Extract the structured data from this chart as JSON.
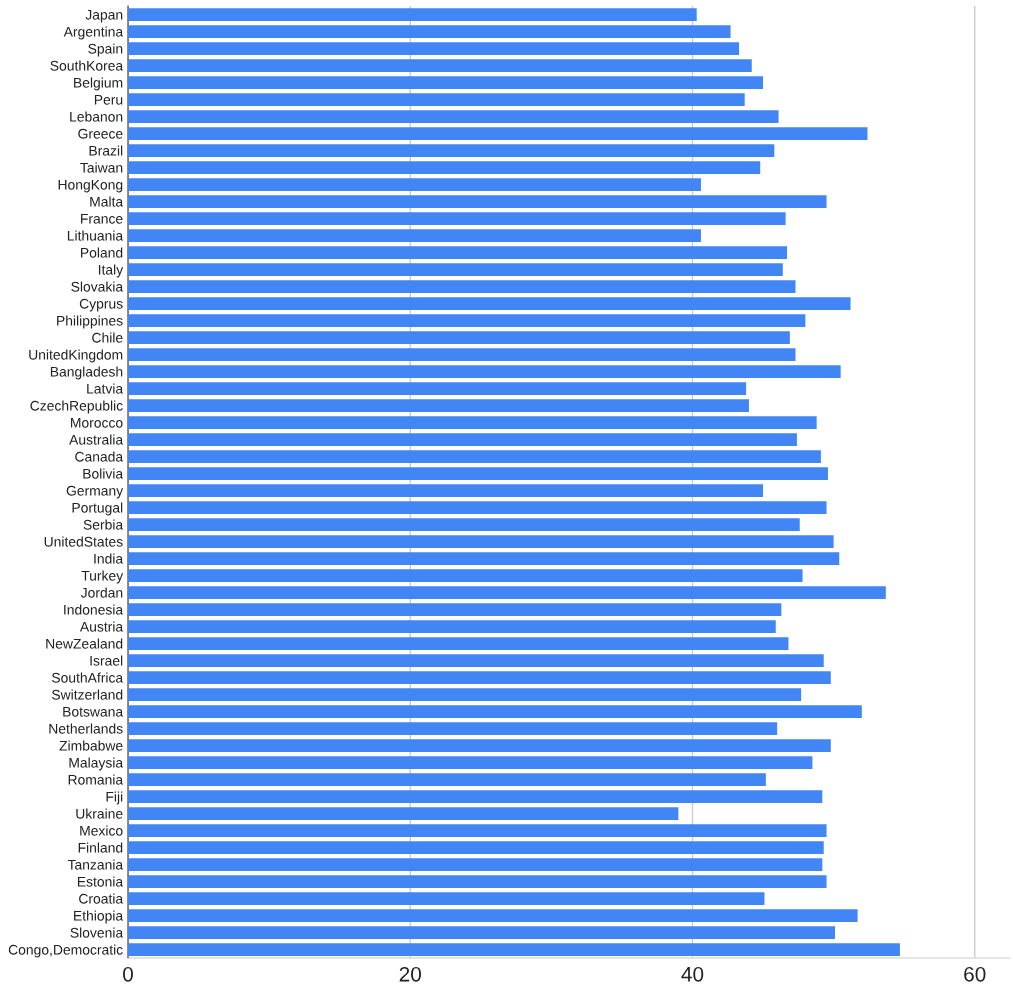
{
  "chart_data": {
    "type": "bar",
    "orientation": "horizontal",
    "categories": [
      "Japan",
      "Argentina",
      "Spain",
      "SouthKorea",
      "Belgium",
      "Peru",
      "Lebanon",
      "Greece",
      "Brazil",
      "Taiwan",
      "HongKong",
      "Malta",
      "France",
      "Lithuania",
      "Poland",
      "Italy",
      "Slovakia",
      "Cyprus",
      "Philippines",
      "Chile",
      "UnitedKingdom",
      "Bangladesh",
      "Latvia",
      "CzechRepublic",
      "Morocco",
      "Australia",
      "Canada",
      "Bolivia",
      "Germany",
      "Portugal",
      "Serbia",
      "UnitedStates",
      "India",
      "Turkey",
      "Jordan",
      "Indonesia",
      "Austria",
      "NewZealand",
      "Israel",
      "SouthAfrica",
      "Switzerland",
      "Botswana",
      "Netherlands",
      "Zimbabwe",
      "Malaysia",
      "Romania",
      "Fiji",
      "Ukraine",
      "Mexico",
      "Finland",
      "Tanzania",
      "Estonia",
      "Croatia",
      "Ethiopia",
      "Slovenia",
      "Congo,Democratic"
    ],
    "values": [
      40.3,
      42.7,
      43.3,
      44.2,
      45.0,
      43.7,
      46.1,
      52.4,
      45.8,
      44.8,
      40.6,
      49.5,
      46.6,
      40.6,
      46.7,
      46.4,
      47.3,
      51.2,
      48.0,
      46.9,
      47.3,
      50.5,
      43.8,
      44.0,
      48.8,
      47.4,
      49.1,
      49.6,
      45.0,
      49.5,
      47.6,
      50.0,
      50.4,
      47.8,
      53.7,
      46.3,
      45.9,
      46.8,
      49.3,
      49.8,
      47.7,
      52.0,
      46.0,
      49.8,
      48.5,
      45.2,
      49.2,
      39.0,
      49.5,
      49.3,
      49.2,
      49.5,
      45.1,
      51.7,
      50.1,
      54.7
    ],
    "color": "#4285f4",
    "xlim": [
      0,
      62.5
    ],
    "xticks": [
      0,
      20,
      40,
      60
    ],
    "grid": "x"
  }
}
